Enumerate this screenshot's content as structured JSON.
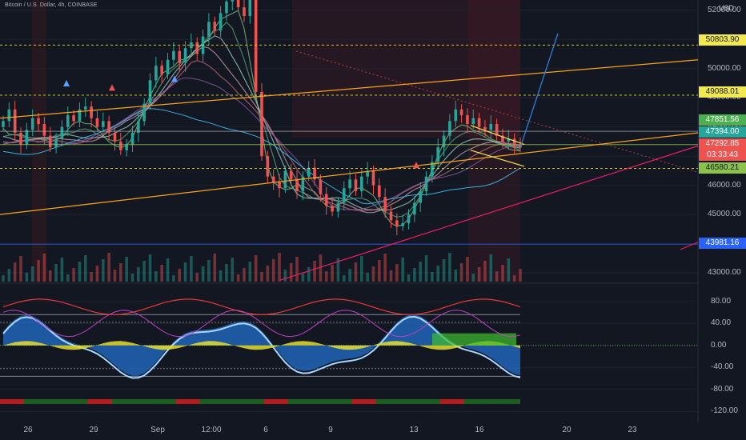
{
  "header": {
    "symbol_title": "Bitcoin / U.S. Dollar, 4h, COINBASE",
    "currency": "USD"
  },
  "colors": {
    "background": "#131722",
    "grid": "#1e222d",
    "up_candle": "#26a69a",
    "down_candle": "#ef5350",
    "orange_trend": "#f7a21b",
    "blue_projection": "#2962ff",
    "pink_support": "#e91e63",
    "yellow_level": "#f2e94e",
    "wave_blue": "#1f5fae",
    "wave_light": "#a8d8ff",
    "wave_yellow": "#e6de2f",
    "wave_green": "#3fbf2f"
  },
  "price_tags": [
    {
      "label": "50803.90",
      "bg": "#f2e94e",
      "fg": "#131722"
    },
    {
      "label": "49088.01",
      "bg": "#f2e94e",
      "fg": "#131722"
    },
    {
      "label": "47851.56",
      "bg": "#4caf50",
      "fg": "#ffffff"
    },
    {
      "label": "47394.00",
      "bg": "#26a69a",
      "fg": "#ffffff"
    },
    {
      "label": "47292.85",
      "bg": "#ef5350",
      "fg": "#ffffff"
    },
    {
      "label": "03:33:43",
      "bg": "#ef5350",
      "fg": "#ffffff"
    },
    {
      "label": "46580.21",
      "bg": "#8bc34a",
      "fg": "#131722"
    },
    {
      "label": "43981.16",
      "bg": "#2962ff",
      "fg": "#ffffff"
    }
  ],
  "chart_data": {
    "type": "candlestick",
    "price_axis": {
      "ticks": [
        43000,
        44000,
        45000,
        46000,
        47000,
        48000,
        49000,
        50000,
        51000,
        52000
      ],
      "tick_labels": [
        "43000.00",
        "44000.00",
        "45000.00",
        "46000.00",
        "47000.00",
        "48000.00",
        "49000.00",
        "50000.00",
        "51000.00",
        "52000.00"
      ]
    },
    "oscillator_axis": {
      "ticks": [
        -120,
        -80,
        -40,
        0,
        40,
        80
      ],
      "tick_labels": [
        "-120.00",
        "-80.00",
        "-40.00",
        "0.00",
        "40.00",
        "80.00"
      ]
    },
    "x_axis": {
      "tick_labels": [
        "26",
        "29",
        "Sep",
        "12:00",
        "6",
        "9",
        "13",
        "16",
        "20",
        "23"
      ]
    },
    "close_prices": [
      48200,
      48600,
      47800,
      47400,
      47900,
      48300,
      48100,
      47700,
      47300,
      47600,
      48000,
      48400,
      48200,
      48600,
      48700,
      48300,
      48000,
      48200,
      47800,
      47500,
      47200,
      47400,
      47800,
      48200,
      48800,
      49600,
      50100,
      49800,
      50300,
      50600,
      50200,
      50700,
      50900,
      50500,
      51100,
      51600,
      51300,
      51900,
      52300,
      52600,
      52100,
      51800,
      52400,
      49200,
      47000,
      46300,
      46100,
      45900,
      46500,
      46200,
      45800,
      46300,
      46600,
      46200,
      45700,
      45300,
      45100,
      45400,
      45900,
      46200,
      45800,
      46300,
      46500,
      46000,
      45600,
      45100,
      44800,
      44600,
      44700,
      45000,
      45400,
      45800,
      46300,
      46800,
      47300,
      47700,
      48200,
      48600,
      48400,
      48100,
      48300,
      48000,
      47900,
      48100,
      47700,
      47500,
      47600,
      47400,
      47293
    ],
    "levels": [
      {
        "name": "50803.90",
        "price": 50803.9
      },
      {
        "name": "49088.01",
        "price": 49088.01
      },
      {
        "name": "47851.56",
        "price": 47851.56
      },
      {
        "name": "47394.00",
        "price": 47394.0
      },
      {
        "name": "46580.21",
        "price": 46580.21
      },
      {
        "name": "43981.16",
        "price": 43981.16
      }
    ],
    "oscillator": {
      "upper_band": 56,
      "lower_band": -56,
      "zero_line": 0
    }
  }
}
